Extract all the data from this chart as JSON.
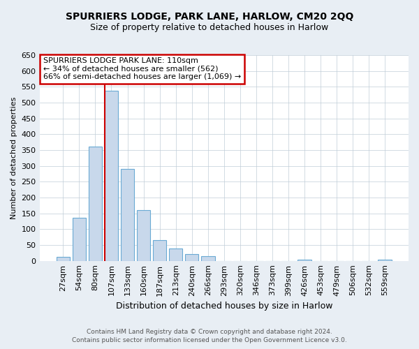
{
  "title": "SPURRIERS LODGE, PARK LANE, HARLOW, CM20 2QQ",
  "subtitle": "Size of property relative to detached houses in Harlow",
  "xlabel": "Distribution of detached houses by size in Harlow",
  "ylabel": "Number of detached properties",
  "bin_labels": [
    "27sqm",
    "54sqm",
    "80sqm",
    "107sqm",
    "133sqm",
    "160sqm",
    "187sqm",
    "213sqm",
    "240sqm",
    "266sqm",
    "293sqm",
    "320sqm",
    "346sqm",
    "373sqm",
    "399sqm",
    "426sqm",
    "453sqm",
    "479sqm",
    "506sqm",
    "532sqm",
    "559sqm"
  ],
  "bar_values": [
    12,
    137,
    360,
    537,
    291,
    160,
    65,
    40,
    22,
    14,
    0,
    0,
    0,
    0,
    0,
    3,
    0,
    0,
    0,
    0,
    3
  ],
  "bar_color": "#c8d8eb",
  "bar_edge_color": "#6aaad4",
  "highlight_bin_index": 3,
  "highlight_line_color": "#cc0000",
  "annotation_title": "SPURRIERS LODGE PARK LANE: 110sqm",
  "annotation_line1": "← 34% of detached houses are smaller (562)",
  "annotation_line2": "66% of semi-detached houses are larger (1,069) →",
  "annotation_box_color": "#cc0000",
  "ylim": [
    0,
    650
  ],
  "yticks": [
    0,
    50,
    100,
    150,
    200,
    250,
    300,
    350,
    400,
    450,
    500,
    550,
    600,
    650
  ],
  "footer1": "Contains HM Land Registry data © Crown copyright and database right 2024.",
  "footer2": "Contains public sector information licensed under the Open Government Licence v3.0.",
  "bg_color": "#e8eef4",
  "plot_bg_color": "#ffffff",
  "grid_color": "#c0cdd8",
  "title_fontsize": 10,
  "subtitle_fontsize": 9,
  "ylabel_fontsize": 8,
  "xlabel_fontsize": 9,
  "tick_fontsize": 8,
  "footer_fontsize": 6.5
}
